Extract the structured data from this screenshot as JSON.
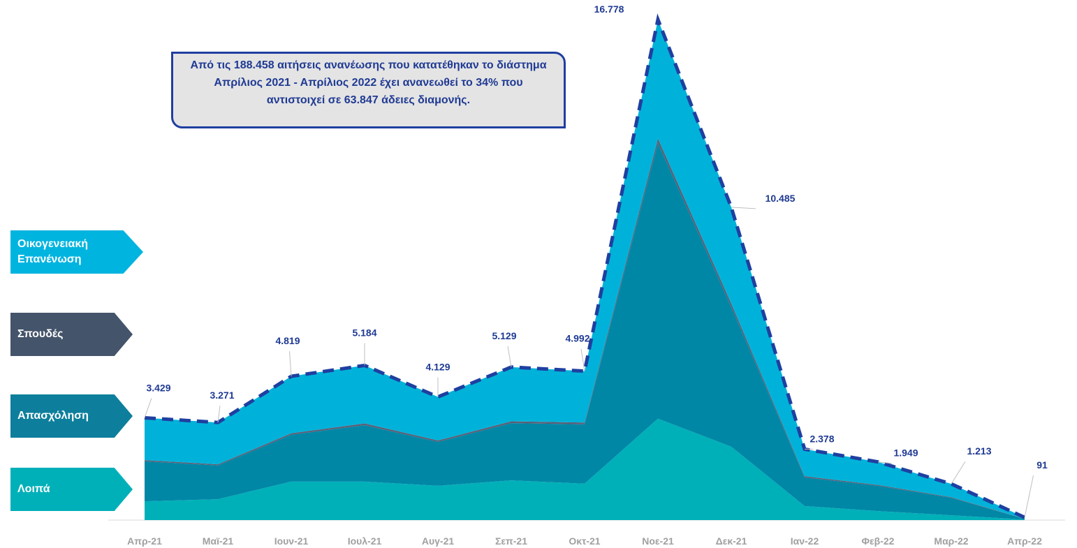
{
  "chart_data": {
    "type": "stacked_area",
    "categories": [
      "Απρ-21",
      "Μαϊ-21",
      "Ιουν-21",
      "Ιουλ-21",
      "Αυγ-21",
      "Σεπ-21",
      "Οκτ-21",
      "Νοε-21",
      "Δεκ-21",
      "Ιαν-22",
      "Φεβ-22",
      "Μαρ-22",
      "Απρ-22"
    ],
    "series": [
      {
        "name": "Λοιπά",
        "color": "#00b0b9",
        "values": [
          630,
          700,
          1290,
          1290,
          1150,
          1330,
          1220,
          3400,
          2460,
          470,
          300,
          160,
          20
        ]
      },
      {
        "name": "Απασχόληση",
        "color": "#0087a6",
        "values": [
          1340,
          1130,
          1570,
          1890,
          1470,
          1920,
          1990,
          9240,
          4680,
          960,
          850,
          590,
          20
        ]
      },
      {
        "name": "Σπουδές",
        "color": "#5a6078",
        "values": [
          40,
          40,
          50,
          60,
          50,
          60,
          60,
          150,
          120,
          40,
          30,
          20,
          5
        ]
      },
      {
        "name": "Οικογενειακή Επανένωση",
        "color": "#00b2d9",
        "values": [
          1419,
          1401,
          1909,
          1944,
          1459,
          1819,
          1722,
          3988,
          3225,
          908,
          769,
          443,
          46
        ]
      }
    ],
    "totals": [
      3429,
      3271,
      4819,
      5184,
      4129,
      5129,
      4992,
      16778,
      10485,
      2378,
      1949,
      1213,
      91
    ],
    "value_labels": [
      "3.429",
      "3.271",
      "4.819",
      "5.184",
      "4.129",
      "5.129",
      "4.992",
      "16.778",
      "10.485",
      "2.378",
      "1.949",
      "1.213",
      "91"
    ],
    "legend_colors": [
      "#00b0b9",
      "#0d7f9c",
      "#44546a",
      "#00b4e0"
    ],
    "annotation": "Από τις 188.458 αιτήσεις ανανέωσης που κατατέθηκαν το διάστημα Απρίλιος 2021 - Απρίλιος 2022 έχει ανανεωθεί το 34% που αντιστοιχεί σε 63.847 άδειες διαμονής."
  }
}
